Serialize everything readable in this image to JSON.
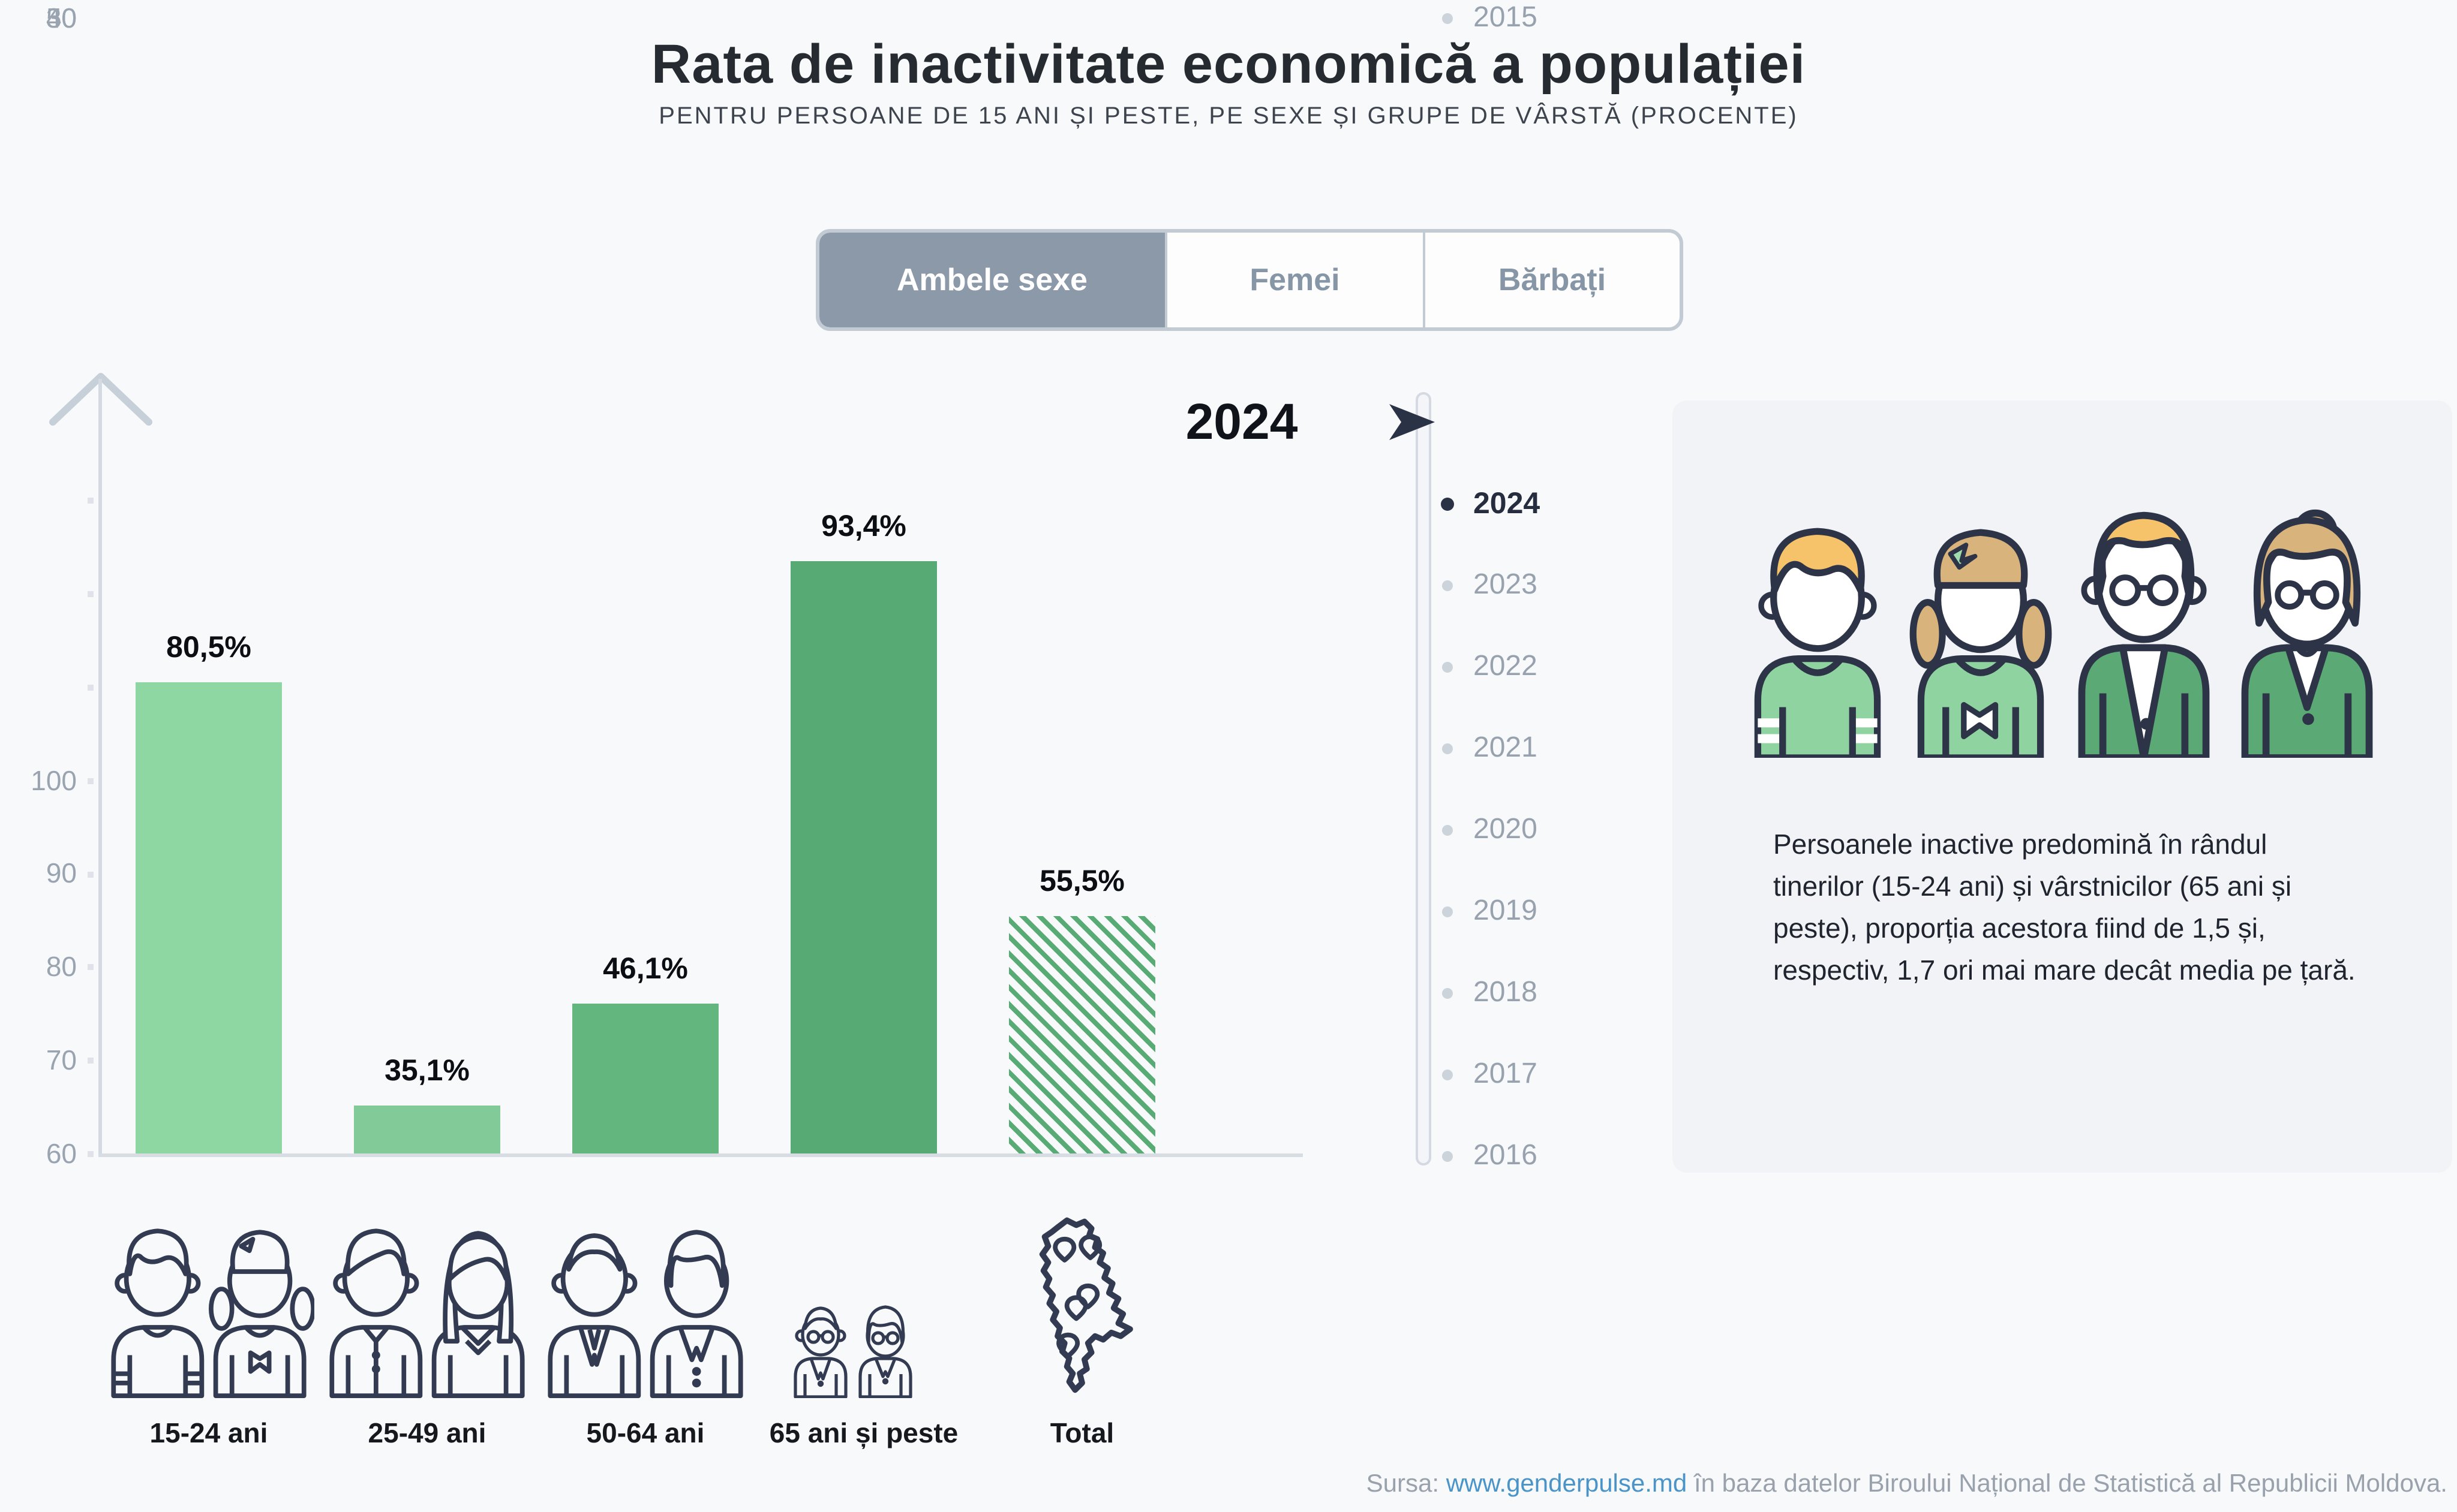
{
  "title": "Rata de inactivitate economică a populației",
  "subtitle": "PENTRU PERSOANE DE 15 ANI ȘI PESTE, PE SEXE ȘI GRUPE DE VÂRSTĂ (PROCENTE)",
  "tabs": {
    "items": [
      "Ambele sexe",
      "Femei",
      "Bărbați"
    ],
    "active": "Ambele sexe"
  },
  "chart_data": {
    "type": "bar",
    "title": "Rata de inactivitate economică a populației",
    "year_label": "2024",
    "categories": [
      "15-24 ani",
      "25-49 ani",
      "50-64 ani",
      "65 ani și peste",
      "Total"
    ],
    "values": [
      80.5,
      35.1,
      46.1,
      93.4,
      55.5
    ],
    "value_labels": [
      "80,5%",
      "35,1%",
      "46,1%",
      "93,4%",
      "55,5%"
    ],
    "unit": "procente",
    "ylim": [
      30,
      100
    ],
    "ytick_labels": [
      "100",
      "90",
      "80",
      "70",
      "60",
      "50",
      "40",
      "30"
    ],
    "grid": false,
    "legend_position": "none",
    "total_bar_style": "hatched",
    "bar_colors": [
      "#8ed6a2",
      "#82cb98",
      "#63b67e",
      "#57aa73",
      "#57aa73"
    ]
  },
  "timeline": {
    "years": [
      "2024",
      "2023",
      "2022",
      "2021",
      "2020",
      "2019",
      "2018",
      "2017",
      "2016",
      "2015"
    ],
    "selected": "2024"
  },
  "panel": {
    "note": "Persoanele inactive predomină în rândul tinerilor (15-24 ani) și vârstnicilor (65 ani și peste), proporția acestora fiind de 1,5 și, respectiv, 1,7 ori mai mare decât media pe țară."
  },
  "source": {
    "prefix": "Sursa: ",
    "link_text": "www.genderpulse.md",
    "suffix": " în baza datelor Biroului Național de Statistică al Republicii Moldova."
  },
  "colors": {
    "background": "#f8f9fb",
    "panel_background": "#f1f3f6",
    "active_tab": "#8b99a9",
    "accent_dark": "#2a3245",
    "link": "#4a94c8",
    "axis": "#d8dde4",
    "tick_text": "#9aa4b0",
    "bar_light_green": "#8ed6a2",
    "bar_dark_green": "#57aa73"
  }
}
